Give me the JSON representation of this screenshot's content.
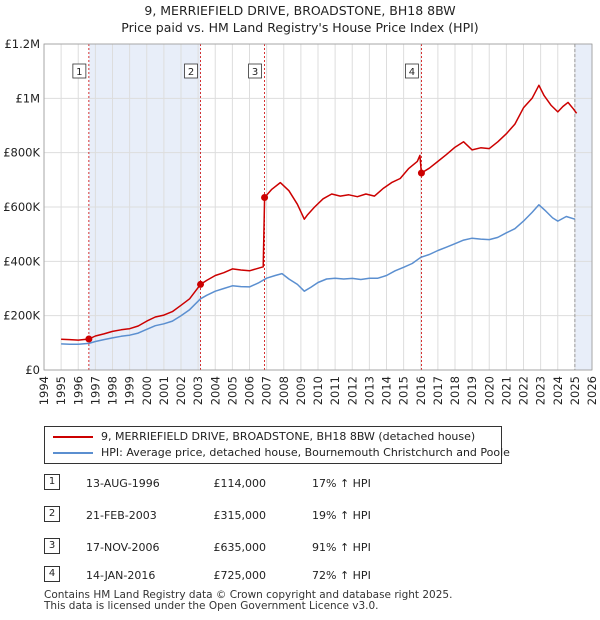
{
  "title_line1": "9, MERRIEFIELD DRIVE, BROADSTONE, BH18 8BW",
  "title_line2": "Price paid vs. HM Land Registry's House Price Index (HPI)",
  "chart_data": {
    "type": "line",
    "title": "9, MERRIEFIELD DRIVE, BROADSTONE, BH18 8BW",
    "subtitle": "Price paid vs. HM Land Registry's House Price Index (HPI)",
    "xlabel": "",
    "ylabel": "",
    "xlim": [
      1994,
      2026
    ],
    "ylim": [
      0,
      1200000
    ],
    "y_ticks": [
      {
        "value": 0,
        "label": "£0"
      },
      {
        "value": 200000,
        "label": "£200K"
      },
      {
        "value": 400000,
        "label": "£400K"
      },
      {
        "value": 600000,
        "label": "£600K"
      },
      {
        "value": 800000,
        "label": "£800K"
      },
      {
        "value": 1000000,
        "label": "£1M"
      },
      {
        "value": 1200000,
        "label": "£1.2M"
      }
    ],
    "x_ticks": [
      "1994",
      "1995",
      "1996",
      "1997",
      "1998",
      "1999",
      "2000",
      "2001",
      "2002",
      "2003",
      "2004",
      "2005",
      "2006",
      "2007",
      "2008",
      "2009",
      "2010",
      "2011",
      "2012",
      "2013",
      "2014",
      "2015",
      "2016",
      "2017",
      "2018",
      "2019",
      "2020",
      "2021",
      "2022",
      "2023",
      "2024",
      "2025",
      "2026"
    ],
    "grid": true,
    "shaded_ranges": [
      [
        1996.62,
        2003.14
      ],
      [
        2025.0,
        2026.0
      ]
    ],
    "series": [
      {
        "name": "9, MERRIEFIELD DRIVE, BROADSTONE, BH18 8BW (detached house)",
        "color": "#cc0000",
        "x": [
          1995.0,
          1995.5,
          1996.0,
          1996.62,
          1997.0,
          1997.5,
          1998.0,
          1998.5,
          1999.0,
          1999.5,
          2000.0,
          2000.5,
          2001.0,
          2001.5,
          2002.0,
          2002.5,
          2003.14,
          2003.5,
          2004.0,
          2004.5,
          2005.0,
          2005.5,
          2006.0,
          2006.8,
          2006.88,
          2007.3,
          2007.8,
          2008.3,
          2008.8,
          2009.2,
          2009.4,
          2009.8,
          2010.3,
          2010.8,
          2011.3,
          2011.8,
          2012.3,
          2012.8,
          2013.3,
          2013.8,
          2014.3,
          2014.8,
          2015.3,
          2015.8,
          2015.95,
          2016.04,
          2016.5,
          2017.0,
          2017.5,
          2018.0,
          2018.5,
          2019.0,
          2019.5,
          2020.0,
          2020.5,
          2021.0,
          2021.5,
          2022.0,
          2022.5,
          2022.9,
          2023.2,
          2023.6,
          2024.0,
          2024.3,
          2024.6,
          2024.9,
          2025.1
        ],
        "y": [
          113000,
          112000,
          110000,
          114000,
          125000,
          133000,
          142000,
          148000,
          152000,
          162000,
          180000,
          195000,
          202000,
          215000,
          238000,
          262000,
          315000,
          330000,
          348000,
          358000,
          372000,
          368000,
          365000,
          380000,
          635000,
          665000,
          690000,
          660000,
          610000,
          555000,
          572000,
          600000,
          630000,
          648000,
          640000,
          645000,
          638000,
          648000,
          640000,
          668000,
          690000,
          705000,
          742000,
          768000,
          790000,
          725000,
          743000,
          768000,
          793000,
          820000,
          840000,
          810000,
          818000,
          815000,
          840000,
          870000,
          905000,
          965000,
          1000000,
          1048000,
          1010000,
          975000,
          950000,
          970000,
          985000,
          962000,
          945000
        ]
      },
      {
        "name": "HPI: Average price, detached house, Bournemouth Christchurch and Poole",
        "color": "#5b8fd0",
        "x": [
          1995.0,
          1995.5,
          1996.0,
          1996.62,
          1997.0,
          1997.5,
          1998.0,
          1998.5,
          1999.0,
          1999.5,
          2000.0,
          2000.5,
          2001.0,
          2001.5,
          2002.0,
          2002.5,
          2003.14,
          2003.5,
          2004.0,
          2004.5,
          2005.0,
          2005.5,
          2006.0,
          2006.5,
          2007.0,
          2007.5,
          2007.9,
          2008.3,
          2008.8,
          2009.2,
          2009.6,
          2010.0,
          2010.5,
          2011.0,
          2011.5,
          2012.0,
          2012.5,
          2013.0,
          2013.5,
          2014.0,
          2014.5,
          2015.0,
          2015.5,
          2016.0,
          2016.5,
          2017.0,
          2017.5,
          2018.0,
          2018.5,
          2019.0,
          2019.5,
          2020.0,
          2020.5,
          2021.0,
          2021.5,
          2022.0,
          2022.5,
          2022.9,
          2023.3,
          2023.7,
          2024.0,
          2024.5,
          2025.0
        ],
        "y": [
          96000,
          95000,
          95000,
          98000,
          105000,
          112000,
          118000,
          124000,
          128000,
          136000,
          150000,
          163000,
          170000,
          180000,
          200000,
          222000,
          262000,
          275000,
          290000,
          300000,
          310000,
          307000,
          306000,
          320000,
          338000,
          348000,
          355000,
          335000,
          315000,
          290000,
          305000,
          322000,
          335000,
          338000,
          335000,
          337000,
          333000,
          338000,
          338000,
          348000,
          365000,
          378000,
          392000,
          415000,
          425000,
          440000,
          452000,
          465000,
          478000,
          485000,
          482000,
          480000,
          488000,
          505000,
          520000,
          548000,
          580000,
          608000,
          585000,
          560000,
          548000,
          565000,
          555000
        ]
      }
    ],
    "markers": [
      {
        "label": "1",
        "x": 1996.62,
        "y": 114000
      },
      {
        "label": "2",
        "x": 2003.14,
        "y": 315000
      },
      {
        "label": "3",
        "x": 2006.88,
        "y": 635000
      },
      {
        "label": "4",
        "x": 2016.04,
        "y": 725000
      }
    ],
    "legend_position": "bottom"
  },
  "legend": [
    {
      "label": "9, MERRIEFIELD DRIVE, BROADSTONE, BH18 8BW (detached house)",
      "color": "#cc0000"
    },
    {
      "label": "HPI: Average price, detached house, Bournemouth Christchurch and Poole",
      "color": "#5b8fd0"
    }
  ],
  "sales": [
    {
      "num": "1",
      "date": "13-AUG-1996",
      "price": "£114,000",
      "hpi": "17% ↑ HPI"
    },
    {
      "num": "2",
      "date": "21-FEB-2003",
      "price": "£315,000",
      "hpi": "19% ↑ HPI"
    },
    {
      "num": "3",
      "date": "17-NOV-2006",
      "price": "£635,000",
      "hpi": "91% ↑ HPI"
    },
    {
      "num": "4",
      "date": "14-JAN-2016",
      "price": "£725,000",
      "hpi": "72% ↑ HPI"
    }
  ],
  "footer_line1": "Contains HM Land Registry data © Crown copyright and database right 2025.",
  "footer_line2": "This data is licensed under the Open Government Licence v3.0."
}
